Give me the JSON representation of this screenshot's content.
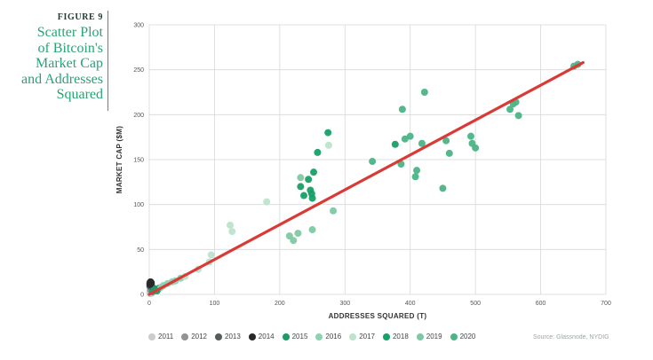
{
  "figure": {
    "label": "FIGURE 9",
    "title_lines": [
      "Scatter Plot",
      "of Bitcoin's",
      "Market Cap",
      "and Addresses",
      "Squared"
    ]
  },
  "source": "Source: Glassnode, NYDIG",
  "colors": {
    "2011": "#c9cdcb",
    "2012": "#8f9592",
    "2013": "#565c59",
    "2014": "#262b29",
    "2015": "#1f9a6b",
    "2016": "#8ed2b2",
    "2017": "#bde3cd",
    "2018": "#17a068",
    "2019": "#7ec9a4",
    "2020": "#4cb487",
    "trend": "#d93a36",
    "grid": "#d8d8d8"
  },
  "chart_data": {
    "type": "scatter",
    "xlabel": "ADDRESSES SQUARED (T)",
    "ylabel": "MARKET CAP ($M)",
    "xlim": [
      0,
      700
    ],
    "ylim": [
      0,
      300
    ],
    "xticks": [
      0,
      100,
      200,
      300,
      400,
      500,
      600,
      700
    ],
    "yticks": [
      0,
      50,
      100,
      150,
      200,
      250,
      300
    ],
    "grid": true,
    "legend_position": "bottom",
    "trendline": {
      "x": [
        0,
        665
      ],
      "y": [
        0,
        258
      ]
    },
    "series": [
      {
        "name": "2011",
        "points": [
          [
            1,
            1
          ],
          [
            2,
            2
          ],
          [
            3,
            1
          ],
          [
            1,
            3
          ],
          [
            2,
            4
          ],
          [
            4,
            3
          ],
          [
            5,
            2
          ]
        ]
      },
      {
        "name": "2012",
        "points": [
          [
            2,
            5
          ],
          [
            3,
            6
          ],
          [
            4,
            7
          ],
          [
            3,
            8
          ],
          [
            5,
            6
          ]
        ]
      },
      {
        "name": "2013",
        "points": [
          [
            1,
            9
          ],
          [
            2,
            10
          ],
          [
            3,
            12
          ],
          [
            2,
            11
          ],
          [
            4,
            9
          ],
          [
            1,
            13
          ]
        ]
      },
      {
        "name": "2014",
        "points": [
          [
            1,
            11
          ],
          [
            2,
            14
          ],
          [
            3,
            13
          ],
          [
            2,
            12
          ]
        ]
      },
      {
        "name": "2015",
        "points": [
          [
            5,
            3
          ],
          [
            8,
            5
          ],
          [
            10,
            6
          ],
          [
            12,
            4
          ],
          [
            15,
            7
          ]
        ]
      },
      {
        "name": "2016",
        "points": [
          [
            18,
            8
          ],
          [
            22,
            10
          ],
          [
            28,
            12
          ],
          [
            35,
            14
          ],
          [
            40,
            15
          ],
          [
            48,
            18
          ]
        ]
      },
      {
        "name": "2017",
        "points": [
          [
            55,
            20
          ],
          [
            75,
            28
          ],
          [
            92,
            36
          ],
          [
            95,
            44
          ],
          [
            124,
            77
          ],
          [
            127,
            70
          ],
          [
            180,
            103
          ],
          [
            275,
            166
          ]
        ]
      },
      {
        "name": "2018",
        "points": [
          [
            232,
            120
          ],
          [
            237,
            110
          ],
          [
            244,
            128
          ],
          [
            247,
            116
          ],
          [
            250,
            107
          ],
          [
            249,
            112
          ],
          [
            252,
            136
          ],
          [
            258,
            158
          ],
          [
            274,
            180
          ],
          [
            377,
            167
          ]
        ]
      },
      {
        "name": "2019",
        "points": [
          [
            215,
            65
          ],
          [
            221,
            60
          ],
          [
            228,
            68
          ],
          [
            250,
            72
          ],
          [
            282,
            93
          ],
          [
            232,
            130
          ]
        ]
      },
      {
        "name": "2020",
        "points": [
          [
            342,
            148
          ],
          [
            386,
            145
          ],
          [
            388,
            206
          ],
          [
            392,
            173
          ],
          [
            400,
            176
          ],
          [
            408,
            131
          ],
          [
            410,
            138
          ],
          [
            418,
            168
          ],
          [
            422,
            225
          ],
          [
            450,
            118
          ],
          [
            455,
            171
          ],
          [
            460,
            157
          ],
          [
            493,
            176
          ],
          [
            495,
            168
          ],
          [
            500,
            163
          ],
          [
            553,
            206
          ],
          [
            558,
            212
          ],
          [
            562,
            214
          ],
          [
            566,
            199
          ],
          [
            651,
            254
          ],
          [
            657,
            256
          ]
        ]
      }
    ]
  }
}
